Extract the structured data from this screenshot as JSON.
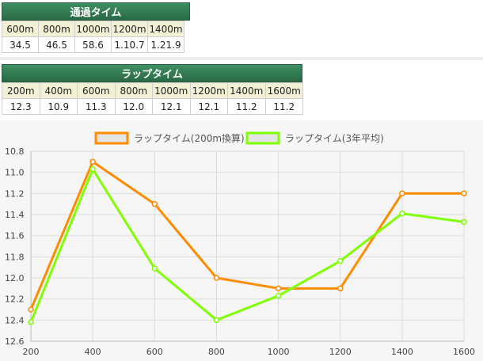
{
  "passing_times": {
    "title": "通過タイム",
    "headers": [
      "600m",
      "800m",
      "1000m",
      "1200m",
      "1400m"
    ],
    "values": [
      "34.5",
      "46.5",
      "58.6",
      "1.10.7",
      "1.21.9"
    ]
  },
  "lap_times": {
    "title": "ラップタイム",
    "headers": [
      "200m",
      "400m",
      "600m",
      "800m",
      "1000m",
      "1200m",
      "1400m",
      "1600m"
    ],
    "values": [
      "12.3",
      "10.9",
      "11.3",
      "12.0",
      "12.1",
      "12.1",
      "11.2",
      "11.2"
    ]
  },
  "chart_data": {
    "type": "line",
    "x": [
      200,
      400,
      600,
      800,
      1000,
      1200,
      1400,
      1600
    ],
    "x_tick_labels": [
      "200",
      "400",
      "600",
      "800",
      "1000",
      "1200",
      "1400",
      "1600"
    ],
    "y_tick_labels": [
      "10.8",
      "11.0",
      "11.2",
      "11.4",
      "11.6",
      "11.8",
      "12.0",
      "12.2",
      "12.4",
      "12.6"
    ],
    "ylim": [
      10.8,
      12.6
    ],
    "y_reversed": true,
    "grid": true,
    "legend_position": "top-center",
    "series": [
      {
        "name": "ラップタイム(200m換算)",
        "color": "#ff8c00",
        "values": [
          12.3,
          10.9,
          11.3,
          12.0,
          12.1,
          12.1,
          11.2,
          11.2
        ]
      },
      {
        "name": "ラップタイム(3年平均)",
        "color": "#80ff00",
        "values": [
          12.42,
          10.97,
          11.91,
          12.4,
          12.17,
          11.84,
          11.39,
          11.47
        ]
      }
    ]
  }
}
